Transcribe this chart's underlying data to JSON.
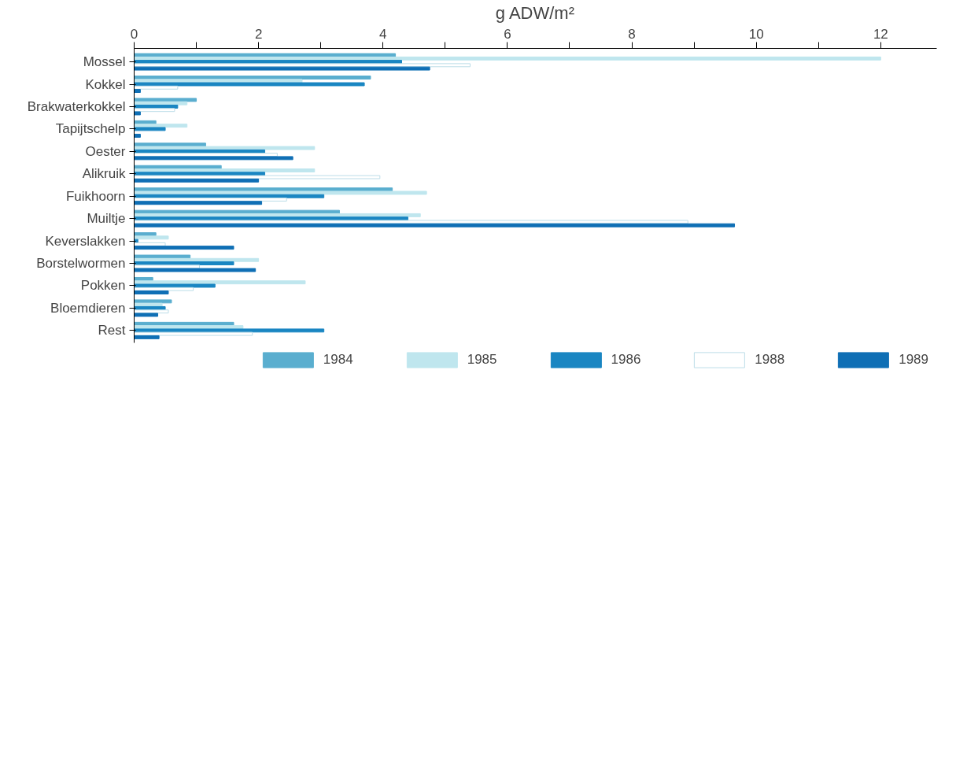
{
  "chart_data": {
    "type": "bar",
    "orientation": "horizontal",
    "xlabel": "g ADW/m²",
    "categories": [
      "Mossel",
      "Kokkel",
      "Brakwaterkokkel",
      "Tapijtschelp",
      "Oester",
      "Alikruik",
      "Fuikhoorn",
      "Muiltje",
      "Keverslakken",
      "Borstelwormen",
      "Pokken",
      "Bloemdieren",
      "Rest"
    ],
    "series": [
      {
        "name": "1984",
        "color": "#5aaecf",
        "values": [
          4.2,
          3.8,
          1.0,
          0.35,
          1.15,
          1.4,
          4.15,
          3.3,
          0.35,
          0.9,
          0.3,
          0.6,
          1.6
        ]
      },
      {
        "name": "1985",
        "color": "#bfe6ee",
        "values": [
          12.0,
          2.7,
          0.85,
          0.85,
          2.9,
          2.9,
          4.7,
          4.6,
          0.55,
          2.0,
          2.75,
          0.45,
          1.75
        ]
      },
      {
        "name": "1986",
        "color": "#1a86c2",
        "values": [
          4.3,
          3.7,
          0.7,
          0.5,
          2.1,
          2.1,
          3.05,
          4.4,
          0.06,
          1.6,
          1.3,
          0.5,
          3.05
        ]
      },
      {
        "name": "1988",
        "color": "#ffffff",
        "values": [
          5.4,
          0.7,
          0.65,
          null,
          2.3,
          3.95,
          2.45,
          8.9,
          0.5,
          1.05,
          0.95,
          0.55,
          1.9
        ]
      },
      {
        "name": "1989",
        "color": "#0f6fb5",
        "values": [
          4.75,
          0.1,
          0.1,
          0.1,
          2.55,
          2.0,
          2.05,
          9.65,
          1.6,
          1.95,
          0.55,
          0.38,
          0.4
        ]
      }
    ],
    "xlim": [
      0,
      12.9
    ],
    "xticks": [
      0,
      {
        "value": 1,
        "label": null
      },
      2,
      {
        "value": 3,
        "label": null
      },
      4,
      {
        "value": 5,
        "label": null
      },
      6,
      {
        "value": 7,
        "label": null
      },
      8,
      {
        "value": 9,
        "label": null
      },
      10,
      {
        "value": 11,
        "label": null
      },
      12
    ],
    "grid": false,
    "legend": "bottom"
  }
}
